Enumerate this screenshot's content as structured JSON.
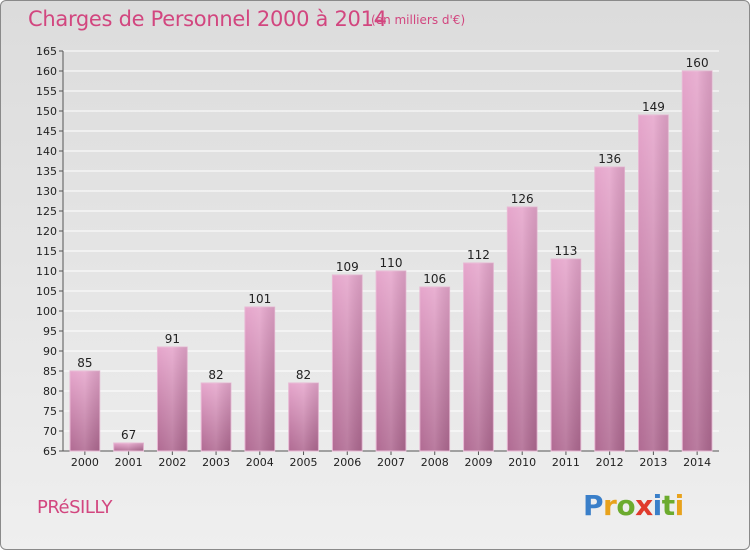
{
  "chart_data": {
    "type": "bar",
    "title": "Charges de Personnel 2000 à 2014",
    "subtitle": "(en milliers d'€)",
    "categories": [
      "2000",
      "2001",
      "2002",
      "2003",
      "2004",
      "2005",
      "2006",
      "2007",
      "2008",
      "2009",
      "2010",
      "2011",
      "2012",
      "2013",
      "2014"
    ],
    "values": [
      85,
      67,
      91,
      82,
      101,
      82,
      109,
      110,
      106,
      112,
      126,
      113,
      136,
      149,
      160
    ],
    "ylim": [
      65,
      165
    ],
    "yticks": [
      65,
      70,
      75,
      80,
      85,
      90,
      95,
      100,
      105,
      110,
      115,
      120,
      125,
      130,
      135,
      140,
      145,
      150,
      155,
      160,
      165
    ],
    "grid": true,
    "bar_color": "#c4709e",
    "title_color": "#d2467f"
  },
  "commune": "PRéSILLY",
  "brand": {
    "letters": [
      {
        "char": "P",
        "color": "#3a7fc9"
      },
      {
        "char": "r",
        "color": "#e8a21c"
      },
      {
        "char": "o",
        "color": "#6cab2e"
      },
      {
        "char": "x",
        "color": "#e03a2c"
      },
      {
        "char": "i",
        "color": "#3a7fc9"
      },
      {
        "char": "t",
        "color": "#6cab2e"
      },
      {
        "char": "i",
        "color": "#e8a21c"
      }
    ]
  }
}
